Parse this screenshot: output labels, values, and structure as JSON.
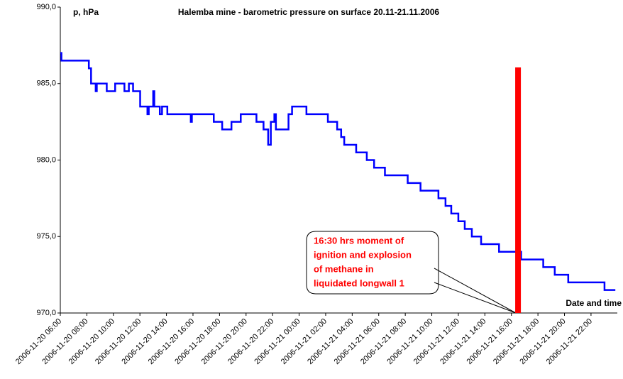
{
  "chart_data": {
    "type": "line",
    "title": "Halemba mine - barometric pressure on surface 20.11-21.11.2006",
    "y_label": "p, hPa",
    "x_label": "Date and time",
    "ylim": [
      970,
      990
    ],
    "yticks": [
      {
        "value": 970,
        "label": "970,0"
      },
      {
        "value": 975,
        "label": "975,0"
      },
      {
        "value": 980,
        "label": "980,0"
      },
      {
        "value": 985,
        "label": "985,0"
      },
      {
        "value": 990,
        "label": "990,0"
      }
    ],
    "xlim": [
      "2006-11-20 06:00",
      "2006-11-21 23:59"
    ],
    "xticks": [
      "2006-11-20 06:00",
      "2006-11-20 08:00",
      "2006-11-20 10:00",
      "2006-11-20 12:00",
      "2006-11-20 14:00",
      "2006-11-20 16:00",
      "2006-11-20 18:00",
      "2006-11-20 20:00",
      "2006-11-20 22:00",
      "2006-11-21 00:00",
      "2006-11-21 02:00",
      "2006-11-21 04:00",
      "2006-11-21 06:00",
      "2006-11-21 08:00",
      "2006-11-21 10:00",
      "2006-11-21 12:00",
      "2006-11-21 14:00",
      "2006-11-21 16:00",
      "2006-11-21 18:00",
      "2006-11-21 20:00",
      "2006-11-21 22:00"
    ],
    "grid": false,
    "x": [
      "2006-11-20 06:00",
      "2006-11-20 06:05",
      "2006-11-20 06:05",
      "2006-11-20 08:09",
      "2006-11-20 08:09",
      "2006-11-20 08:19",
      "2006-11-20 08:19",
      "2006-11-20 08:40",
      "2006-11-20 08:40",
      "2006-11-20 08:45",
      "2006-11-20 08:45",
      "2006-11-20 09:30",
      "2006-11-20 09:30",
      "2006-11-20 10:08",
      "2006-11-20 10:08",
      "2006-11-20 10:50",
      "2006-11-20 10:50",
      "2006-11-20 11:10",
      "2006-11-20 11:10",
      "2006-11-20 11:29",
      "2006-11-20 11:29",
      "2006-11-20 12:01",
      "2006-11-20 12:01",
      "2006-11-20 12:34",
      "2006-11-20 12:34",
      "2006-11-20 12:40",
      "2006-11-20 12:40",
      "2006-11-20 13:00",
      "2006-11-20 13:00",
      "2006-11-20 13:05",
      "2006-11-20 13:05",
      "2006-11-20 13:30",
      "2006-11-20 13:30",
      "2006-11-20 13:40",
      "2006-11-20 13:40",
      "2006-11-20 14:04",
      "2006-11-20 14:04",
      "2006-11-20 15:50",
      "2006-11-20 15:50",
      "2006-11-20 15:55",
      "2006-11-20 15:55",
      "2006-11-20 17:34",
      "2006-11-20 17:34",
      "2006-11-20 18:12",
      "2006-11-20 18:12",
      "2006-11-20 18:54",
      "2006-11-20 18:54",
      "2006-11-20 19:36",
      "2006-11-20 19:36",
      "2006-11-20 20:47",
      "2006-11-20 20:47",
      "2006-11-20 21:19",
      "2006-11-20 21:19",
      "2006-11-20 21:40",
      "2006-11-20 21:40",
      "2006-11-20 21:52",
      "2006-11-20 21:52",
      "2006-11-20 22:08",
      "2006-11-20 22:08",
      "2006-11-20 22:15",
      "2006-11-20 22:15",
      "2006-11-20 23:12",
      "2006-11-20 23:12",
      "2006-11-20 23:28",
      "2006-11-20 23:28",
      "2006-11-21 00:33",
      "2006-11-21 00:33",
      "2006-11-21 02:10",
      "2006-11-21 02:10",
      "2006-11-21 02:52",
      "2006-11-21 02:52",
      "2006-11-21 03:10",
      "2006-11-21 03:10",
      "2006-11-21 03:24",
      "2006-11-21 03:24",
      "2006-11-21 04:18",
      "2006-11-21 04:18",
      "2006-11-21 05:06",
      "2006-11-21 05:06",
      "2006-11-21 05:39",
      "2006-11-21 05:39",
      "2006-11-21 06:28",
      "2006-11-21 06:28",
      "2006-11-21 08:11",
      "2006-11-21 08:11",
      "2006-11-21 09:09",
      "2006-11-21 09:09",
      "2006-11-21 10:30",
      "2006-11-21 10:30",
      "2006-11-21 11:02",
      "2006-11-21 11:02",
      "2006-11-21 11:28",
      "2006-11-21 11:28",
      "2006-11-21 12:00",
      "2006-11-21 12:00",
      "2006-11-21 12:29",
      "2006-11-21 12:29",
      "2006-11-21 13:01",
      "2006-11-21 13:01",
      "2006-11-21 13:43",
      "2006-11-21 13:43",
      "2006-11-21 15:04",
      "2006-11-21 15:04",
      "2006-11-21 16:44",
      "2006-11-21 16:44",
      "2006-11-21 18:24",
      "2006-11-21 18:24",
      "2006-11-21 19:16",
      "2006-11-21 19:16",
      "2006-11-21 20:17",
      "2006-11-21 20:17",
      "2006-11-21 23:01",
      "2006-11-21 23:01",
      "2006-11-21 23:50"
    ],
    "series": [
      {
        "color": "#0000ff",
        "values": [
          987,
          987,
          986.5,
          986.5,
          986,
          986,
          985,
          985,
          984.5,
          984.5,
          985,
          985,
          984.5,
          984.5,
          985,
          985,
          984.5,
          984.5,
          985,
          985,
          984.5,
          984.5,
          983.5,
          983.5,
          983,
          983,
          983.5,
          983.5,
          984.5,
          984.5,
          983.5,
          983.5,
          983,
          983,
          983.5,
          983.5,
          983,
          983,
          982.5,
          982.5,
          983,
          983,
          982.5,
          982.5,
          982,
          982,
          982.5,
          982.5,
          983,
          983,
          982.5,
          982.5,
          982,
          982,
          981,
          981,
          982.5,
          982.5,
          983,
          983,
          982,
          982,
          983,
          983,
          983.5,
          983.5,
          983,
          983,
          982.5,
          982.5,
          982,
          982,
          981.5,
          981.5,
          981,
          981,
          980.5,
          980.5,
          980,
          980,
          979.5,
          979.5,
          979,
          979,
          978.5,
          978.5,
          978,
          978,
          977.5,
          977.5,
          977,
          977,
          976.5,
          976.5,
          976,
          976,
          975.5,
          975.5,
          975,
          975,
          974.5,
          974.5,
          974,
          974,
          973.5,
          973.5,
          973,
          973,
          972.5,
          972.5,
          972,
          972,
          971.5,
          971.5
        ]
      }
    ],
    "annotation": {
      "x": "2006-11-21 16:30",
      "color": "#ff0000",
      "lines": [
        "16:30 hrs moment of",
        "ignition and explosion",
        "of methane in",
        "liquidated longwall 1"
      ]
    }
  }
}
